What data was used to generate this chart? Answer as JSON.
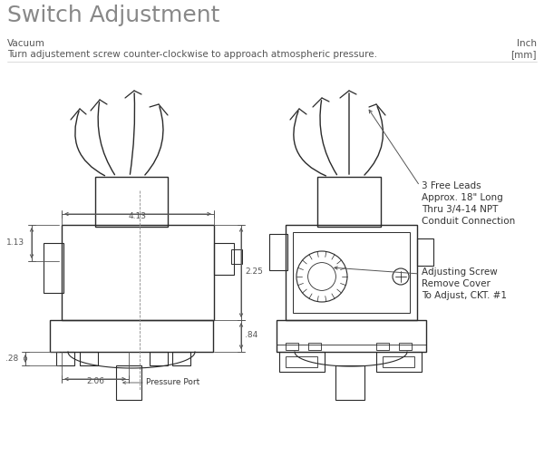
{
  "title": "Switch Adjustment",
  "sub1": "Vacuum",
  "sub2": "Turn adjustement screw counter-clockwise to approach atmospheric pressure.",
  "sub_r1": "Inch",
  "sub_r2": "[mm]",
  "bg": "#ffffff",
  "lc": "#2a2a2a",
  "tc": "#333333",
  "dc": "#555555"
}
